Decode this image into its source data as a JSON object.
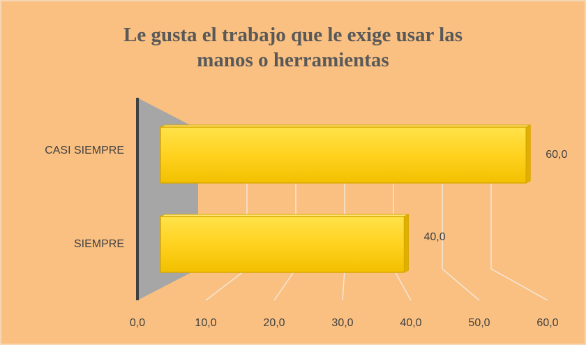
{
  "chart_data": {
    "type": "bar",
    "orientation": "horizontal",
    "title": "Le gusta el trabajo que le exige usar las manos o herramientas",
    "categories": [
      "CASI SIEMPRE",
      "SIEMPRE"
    ],
    "values": [
      60,
      40
    ],
    "value_labels": [
      "60,0",
      "40,0"
    ],
    "color": "#ffd21f",
    "xlim": [
      0,
      60
    ],
    "xticks": [
      {
        "value": 0,
        "label": "0,0"
      },
      {
        "value": 10,
        "label": "10,0"
      },
      {
        "value": 20,
        "label": "20,0"
      },
      {
        "value": 30,
        "label": "30,0"
      },
      {
        "value": 40,
        "label": "40,0"
      },
      {
        "value": 50,
        "label": "50,0"
      },
      {
        "value": 60,
        "label": "60,0"
      }
    ],
    "grid": true
  }
}
